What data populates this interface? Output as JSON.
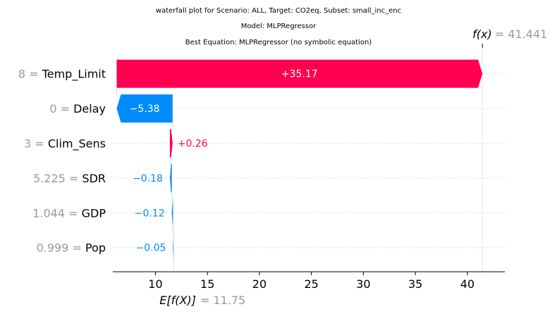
{
  "chart_data": {
    "type": "waterfall",
    "title": [
      "waterfall plot for Scenario: ALL, Target: CO2eq, Subset: small_inc_enc",
      "Model: MLPRegressor",
      "Best Equation: MLPRegressor (no symbolic equation)"
    ],
    "base_value": 11.75,
    "base_label": "E[f(X)]",
    "base_value_text": "= 11.75",
    "output_value": 41.441,
    "output_label": "f(x)",
    "output_value_text": "= 41.441",
    "xlim": [
      5.9,
      43.6
    ],
    "xticks": [
      10,
      15,
      20,
      25,
      30,
      35,
      40
    ],
    "features": [
      {
        "value": "8",
        "name": "Temp_Limit",
        "contribution": 35.17,
        "label": "+35.17"
      },
      {
        "value": "0",
        "name": "Delay",
        "contribution": -5.38,
        "label": "−5.38"
      },
      {
        "value": "3",
        "name": "Clim_Sens",
        "contribution": 0.26,
        "label": "+0.26"
      },
      {
        "value": "5.225",
        "name": "SDR",
        "contribution": -0.18,
        "label": "−0.18"
      },
      {
        "value": "1.044",
        "name": "GDP",
        "contribution": -0.12,
        "label": "−0.12"
      },
      {
        "value": "0.999",
        "name": "Pop",
        "contribution": -0.05,
        "label": "−0.05"
      }
    ],
    "colors": {
      "positive": "#ff0051",
      "negative": "#008bfb",
      "muted": "#999999"
    }
  }
}
